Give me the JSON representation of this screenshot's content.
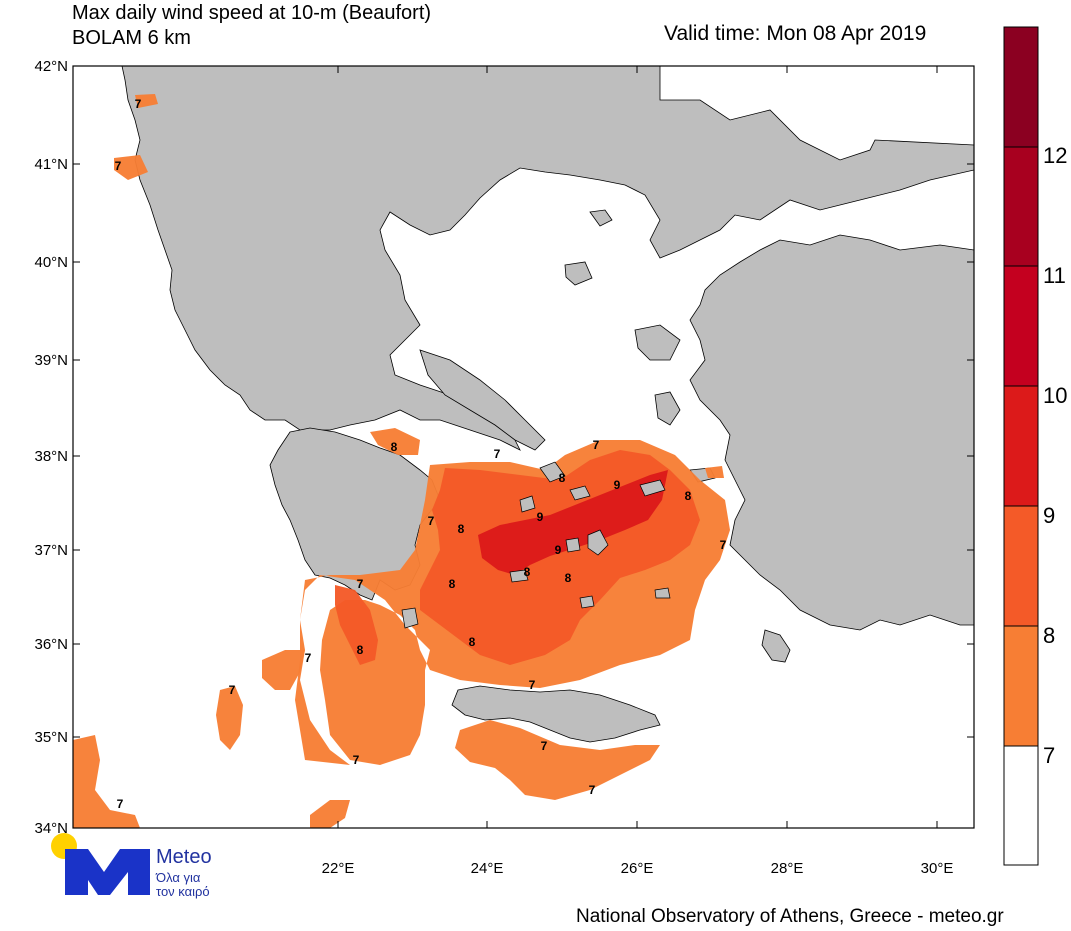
{
  "header": {
    "title_line1": "Max daily wind speed at 10-m (Beaufort)",
    "title_line2": "BOLAM 6 km",
    "valid_time": "Valid time: Mon 08 Apr 2019"
  },
  "axes": {
    "lat_labels": [
      "42°N",
      "41°N",
      "40°N",
      "39°N",
      "38°N",
      "37°N",
      "36°N",
      "35°N",
      "34°N"
    ],
    "lon_labels": [
      "22°E",
      "24°E",
      "26°E",
      "28°E",
      "30°E"
    ]
  },
  "colorbar": {
    "labels": [
      "12",
      "11",
      "10",
      "9",
      "8",
      "7"
    ],
    "colors": [
      "#8b0021",
      "#a8001f",
      "#c4001f",
      "#dc1a1a",
      "#f45a28",
      "#f77e34",
      "#ffffff"
    ]
  },
  "contour_labels": {
    "seven": "7",
    "eight": "8",
    "nine": "9"
  },
  "colors": {
    "land": "#bebebe",
    "sea": "#ffffff",
    "b7": "#f77e34",
    "b8": "#f45a28",
    "b9": "#dc1a1a"
  },
  "logo": {
    "brand": "Meteo",
    "tagline1": "Όλα για",
    "tagline2": "τον καιρό"
  },
  "footer": {
    "credit": "National Observatory of Athens, Greece - meteo.gr"
  }
}
